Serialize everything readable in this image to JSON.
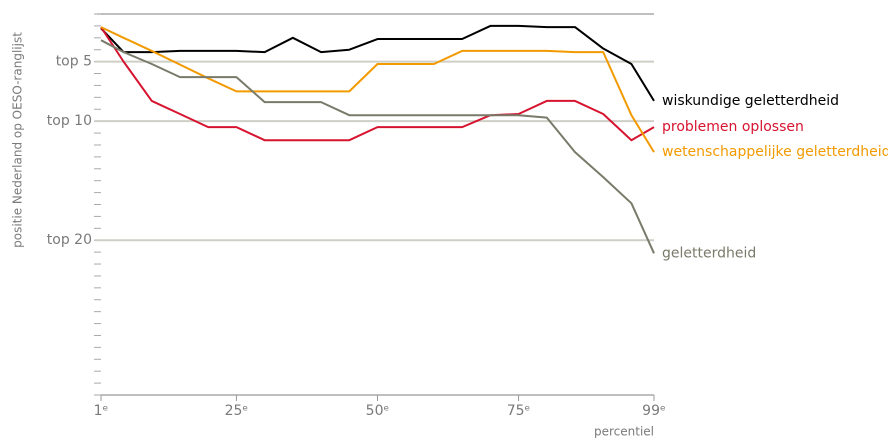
{
  "chart_data": {
    "type": "line",
    "xlabel": "percentiel",
    "ylabel": "positie Nederland op OESO-ranglijst",
    "x": [
      1,
      5,
      10,
      15,
      20,
      25,
      30,
      35,
      40,
      45,
      50,
      55,
      60,
      65,
      70,
      75,
      80,
      85,
      90,
      95,
      99
    ],
    "xlim": [
      1,
      99
    ],
    "xticks": [
      {
        "value": 1,
        "label": "1ᵉ"
      },
      {
        "value": 25,
        "label": "25ᵉ"
      },
      {
        "value": 50,
        "label": "50ᵉ"
      },
      {
        "value": 75,
        "label": "75ᵉ"
      },
      {
        "value": 99,
        "label": "99ᵉ"
      }
    ],
    "ylim": [
      1,
      33
    ],
    "y_inverted": true,
    "yticks": [
      {
        "value": 5,
        "label": "top 5"
      },
      {
        "value": 10,
        "label": "top 10"
      },
      {
        "value": 20,
        "label": "top 20"
      }
    ],
    "minor_ytick_step": 1,
    "grid": true,
    "series": [
      {
        "name": "wiskundige geletterdheid",
        "color": "#000000",
        "values": [
          2.2,
          4.2,
          4.2,
          4.1,
          4.1,
          4.1,
          4.2,
          3.0,
          4.2,
          4.0,
          3.1,
          3.1,
          3.1,
          3.1,
          2.0,
          2.0,
          2.1,
          2.1,
          3.9,
          5.2,
          8.3
        ]
      },
      {
        "name": "problemen oplossen",
        "color": "#d7142f",
        "values": [
          2.1,
          5.0,
          8.3,
          9.4,
          10.5,
          10.5,
          11.6,
          11.6,
          11.6,
          11.6,
          10.5,
          10.5,
          10.5,
          10.5,
          9.5,
          9.4,
          8.3,
          8.3,
          9.4,
          11.6,
          10.5
        ]
      },
      {
        "name": "wetenschappelijke geletterdheid",
        "color": "#f29a00",
        "values": [
          2.1,
          3.0,
          4.1,
          5.25,
          6.4,
          7.5,
          7.5,
          7.5,
          7.5,
          7.5,
          5.2,
          5.2,
          5.2,
          4.1,
          4.1,
          4.1,
          4.1,
          4.2,
          4.2,
          9.5,
          12.6
        ]
      },
      {
        "name": "geletterdheid",
        "color": "#7a7a6a",
        "values": [
          3.2,
          4.2,
          5.2,
          6.3,
          6.3,
          6.3,
          8.4,
          8.4,
          8.4,
          9.5,
          9.5,
          9.5,
          9.5,
          9.5,
          9.5,
          9.5,
          9.7,
          12.6,
          14.7,
          16.9,
          21.1
        ]
      }
    ]
  }
}
